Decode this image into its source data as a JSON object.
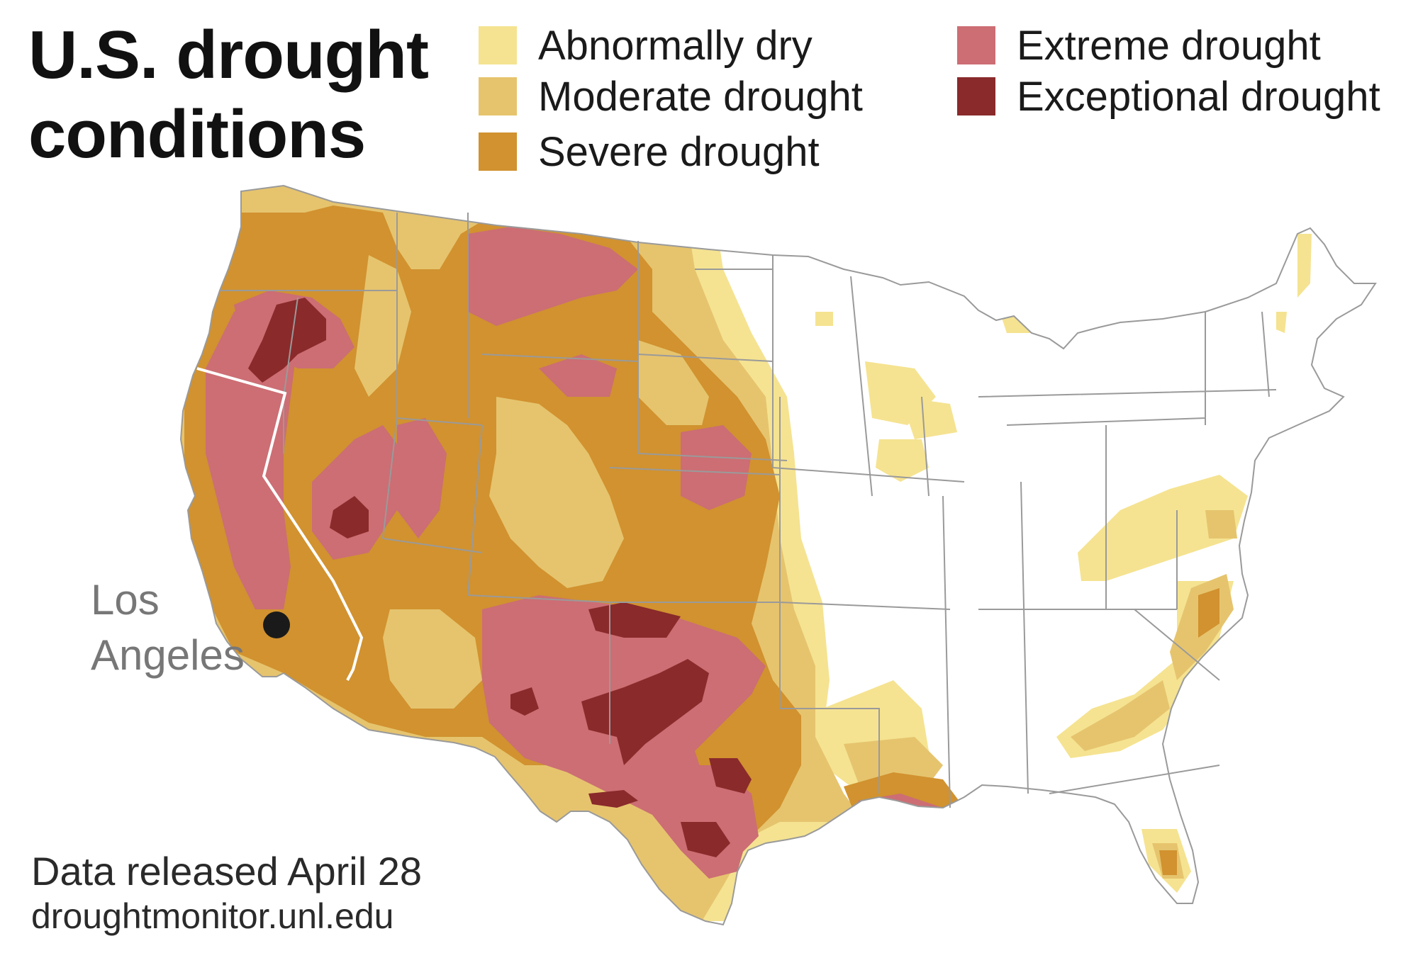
{
  "title": {
    "line1": "U.S. drought",
    "line2": "conditions"
  },
  "legend": [
    {
      "label": "Abnormally dry",
      "color": "#f5e391"
    },
    {
      "label": "Moderate drought",
      "color": "#e6c46e"
    },
    {
      "label": "Severe drought",
      "color": "#d1922f"
    },
    {
      "label": "Extreme drought",
      "color": "#cc6e74"
    },
    {
      "label": "Exceptional drought",
      "color": "#8a2a2b"
    }
  ],
  "city": {
    "line1": "Los",
    "line2": "Angeles",
    "marker_color": "#1a1a1a"
  },
  "footer": {
    "release": "Data released April 28",
    "source": "droughtmonitor.unl.edu"
  },
  "map_colors": {
    "border": "#9a9a9a",
    "california_border": "#ffffff",
    "land": "#ffffff"
  }
}
